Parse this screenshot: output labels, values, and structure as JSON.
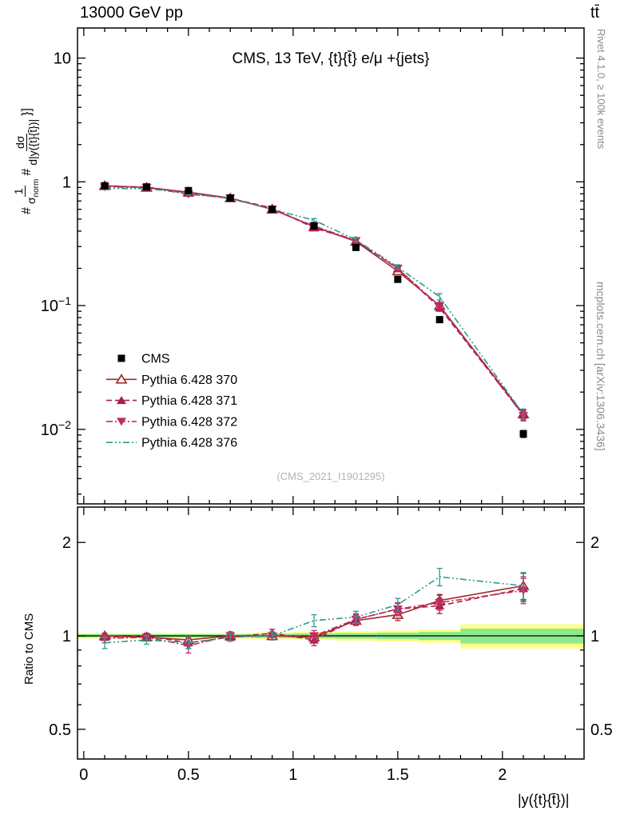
{
  "header": {
    "beam": "13000 GeV pp",
    "process": "tt̄"
  },
  "title": "CMS, 13 TeV, {t}{t̄} e/μ +{jets}",
  "watermark": "(CMS_2021_I1901295)",
  "right_margin": {
    "top": "Rivet 4.1.0, ≥ 100k events",
    "bottom": "mcplots.cern.ch [arXiv:1306.3436]"
  },
  "ylabel": {
    "hash1": "#",
    "frac1_num": "1",
    "frac1_den_base": "σ",
    "frac1_den_sub": "norm",
    "hash2": "#",
    "frac2_num": "dσ",
    "frac2_den": "d|y({t}{t̄})|",
    "tail": "}]"
  },
  "ratio_ylabel": "Ratio to CMS",
  "xlabel": "|y({t}{t̄})|",
  "chart_data": {
    "type": "line",
    "title": "CMS, 13 TeV, {t}{t̄} e/μ +{jets}",
    "xlabel": "|y({t}{t̄})|",
    "x": [
      0.1,
      0.3,
      0.5,
      0.7,
      0.9,
      1.1,
      1.3,
      1.5,
      1.7,
      2.1
    ],
    "x_axis": {
      "range": [
        -0.03,
        2.39
      ],
      "major_ticks": [
        0,
        0.5,
        1,
        1.5,
        2
      ],
      "labels": [
        "0",
        "0.5",
        "1",
        "1.5",
        "2"
      ],
      "minor_step": 0.1
    },
    "main_axis": {
      "scale": "log",
      "range": [
        0.0025,
        17.5
      ],
      "ticks": [
        {
          "v": 10,
          "text": "10"
        },
        {
          "v": 1,
          "text": "1"
        },
        {
          "v": 0.1,
          "text": "10",
          "sup": "−1"
        },
        {
          "v": 0.01,
          "text": "10",
          "sup": "−2"
        }
      ]
    },
    "ratio_axis": {
      "scale": "log",
      "range": [
        0.401,
        2.6
      ],
      "ticks": [
        {
          "v": 2,
          "text": "2"
        },
        {
          "v": 1,
          "text": "1"
        },
        {
          "v": 0.5,
          "text": "0.5"
        }
      ],
      "minor": [
        0.6,
        0.7,
        0.8,
        0.9
      ]
    },
    "cms": {
      "id": "cms",
      "name": "CMS",
      "color": "#000000",
      "marker": "square",
      "values": [
        0.93,
        0.91,
        0.85,
        0.74,
        0.6,
        0.44,
        0.295,
        0.163,
        0.077,
        0.0092
      ],
      "errors": [
        0.018,
        0.018,
        0.017,
        0.015,
        0.013,
        0.011,
        0.008,
        0.006,
        0.003,
        0.0006
      ]
    },
    "series": [
      {
        "id": "370",
        "name": "Pythia 6.428 370",
        "color": "#a02c2c",
        "marker": "triangle-open",
        "dash": "",
        "values": [
          0.93,
          0.9,
          0.825,
          0.74,
          0.6,
          0.435,
          0.33,
          0.19,
          0.1,
          0.0133
        ],
        "errors": [
          0.02,
          0.02,
          0.02,
          0.018,
          0.016,
          0.014,
          0.012,
          0.009,
          0.006,
          0.0012
        ],
        "ratio": [
          1.0,
          0.99,
          0.97,
          1.0,
          1.0,
          0.99,
          1.12,
          1.17,
          1.3,
          1.45
        ],
        "ratio_errors": [
          0.02,
          0.02,
          0.03,
          0.02,
          0.02,
          0.03,
          0.04,
          0.05,
          0.06,
          0.14
        ]
      },
      {
        "id": "371",
        "name": "Pythia 6.428 371",
        "color": "#aa1c4e",
        "marker": "triangle-up",
        "dash": "7 4",
        "values": [
          0.92,
          0.91,
          0.81,
          0.735,
          0.615,
          0.425,
          0.335,
          0.199,
          0.096,
          0.0131
        ],
        "errors": [
          0.02,
          0.02,
          0.02,
          0.018,
          0.016,
          0.014,
          0.012,
          0.009,
          0.006,
          0.0012
        ],
        "ratio": [
          0.99,
          1.0,
          0.95,
          0.99,
          1.02,
          0.97,
          1.13,
          1.22,
          1.25,
          1.42
        ],
        "ratio_errors": [
          0.02,
          0.02,
          0.04,
          0.02,
          0.03,
          0.04,
          0.04,
          0.05,
          0.07,
          0.13
        ]
      },
      {
        "id": "372",
        "name": "Pythia 6.428 372",
        "color": "#c22a66",
        "marker": "triangle-down",
        "dash": "8 3 2 3",
        "values": [
          0.91,
          0.9,
          0.795,
          0.74,
          0.6,
          0.44,
          0.335,
          0.2,
          0.099,
          0.0129
        ],
        "errors": [
          0.02,
          0.02,
          0.02,
          0.018,
          0.016,
          0.014,
          0.012,
          0.009,
          0.006,
          0.0012
        ],
        "ratio": [
          0.98,
          0.99,
          0.93,
          1.0,
          1.0,
          1.0,
          1.13,
          1.22,
          1.28,
          1.4
        ],
        "ratio_errors": [
          0.03,
          0.02,
          0.05,
          0.03,
          0.03,
          0.04,
          0.05,
          0.06,
          0.07,
          0.13
        ]
      },
      {
        "id": "376",
        "name": "Pythia 6.428 376",
        "color": "#2a9d8f",
        "marker": "none",
        "dash": "8 3 2 3 2 3",
        "values": [
          0.885,
          0.88,
          0.81,
          0.73,
          0.6,
          0.49,
          0.34,
          0.205,
          0.118,
          0.0133
        ],
        "errors": [
          0.02,
          0.02,
          0.02,
          0.018,
          0.016,
          0.015,
          0.012,
          0.009,
          0.007,
          0.0013
        ],
        "ratio": [
          0.95,
          0.97,
          0.95,
          0.99,
          1.0,
          1.12,
          1.15,
          1.26,
          1.55,
          1.45
        ],
        "ratio_errors": [
          0.04,
          0.03,
          0.04,
          0.03,
          0.03,
          0.05,
          0.05,
          0.06,
          0.1,
          0.15
        ]
      }
    ],
    "band": {
      "bin_edges": [
        -0.03,
        0.2,
        0.4,
        0.6,
        0.8,
        1.0,
        1.2,
        1.4,
        1.6,
        1.8,
        2.39
      ],
      "yellow_halfwidth": [
        0.02,
        0.02,
        0.02,
        0.02,
        0.025,
        0.03,
        0.035,
        0.04,
        0.05,
        0.09
      ],
      "green_halfwidth": [
        0.012,
        0.012,
        0.012,
        0.012,
        0.015,
        0.018,
        0.02,
        0.024,
        0.03,
        0.055
      ],
      "yellow": "#feff8a",
      "green": "#8ce98c"
    },
    "ratio_reference": 1
  }
}
